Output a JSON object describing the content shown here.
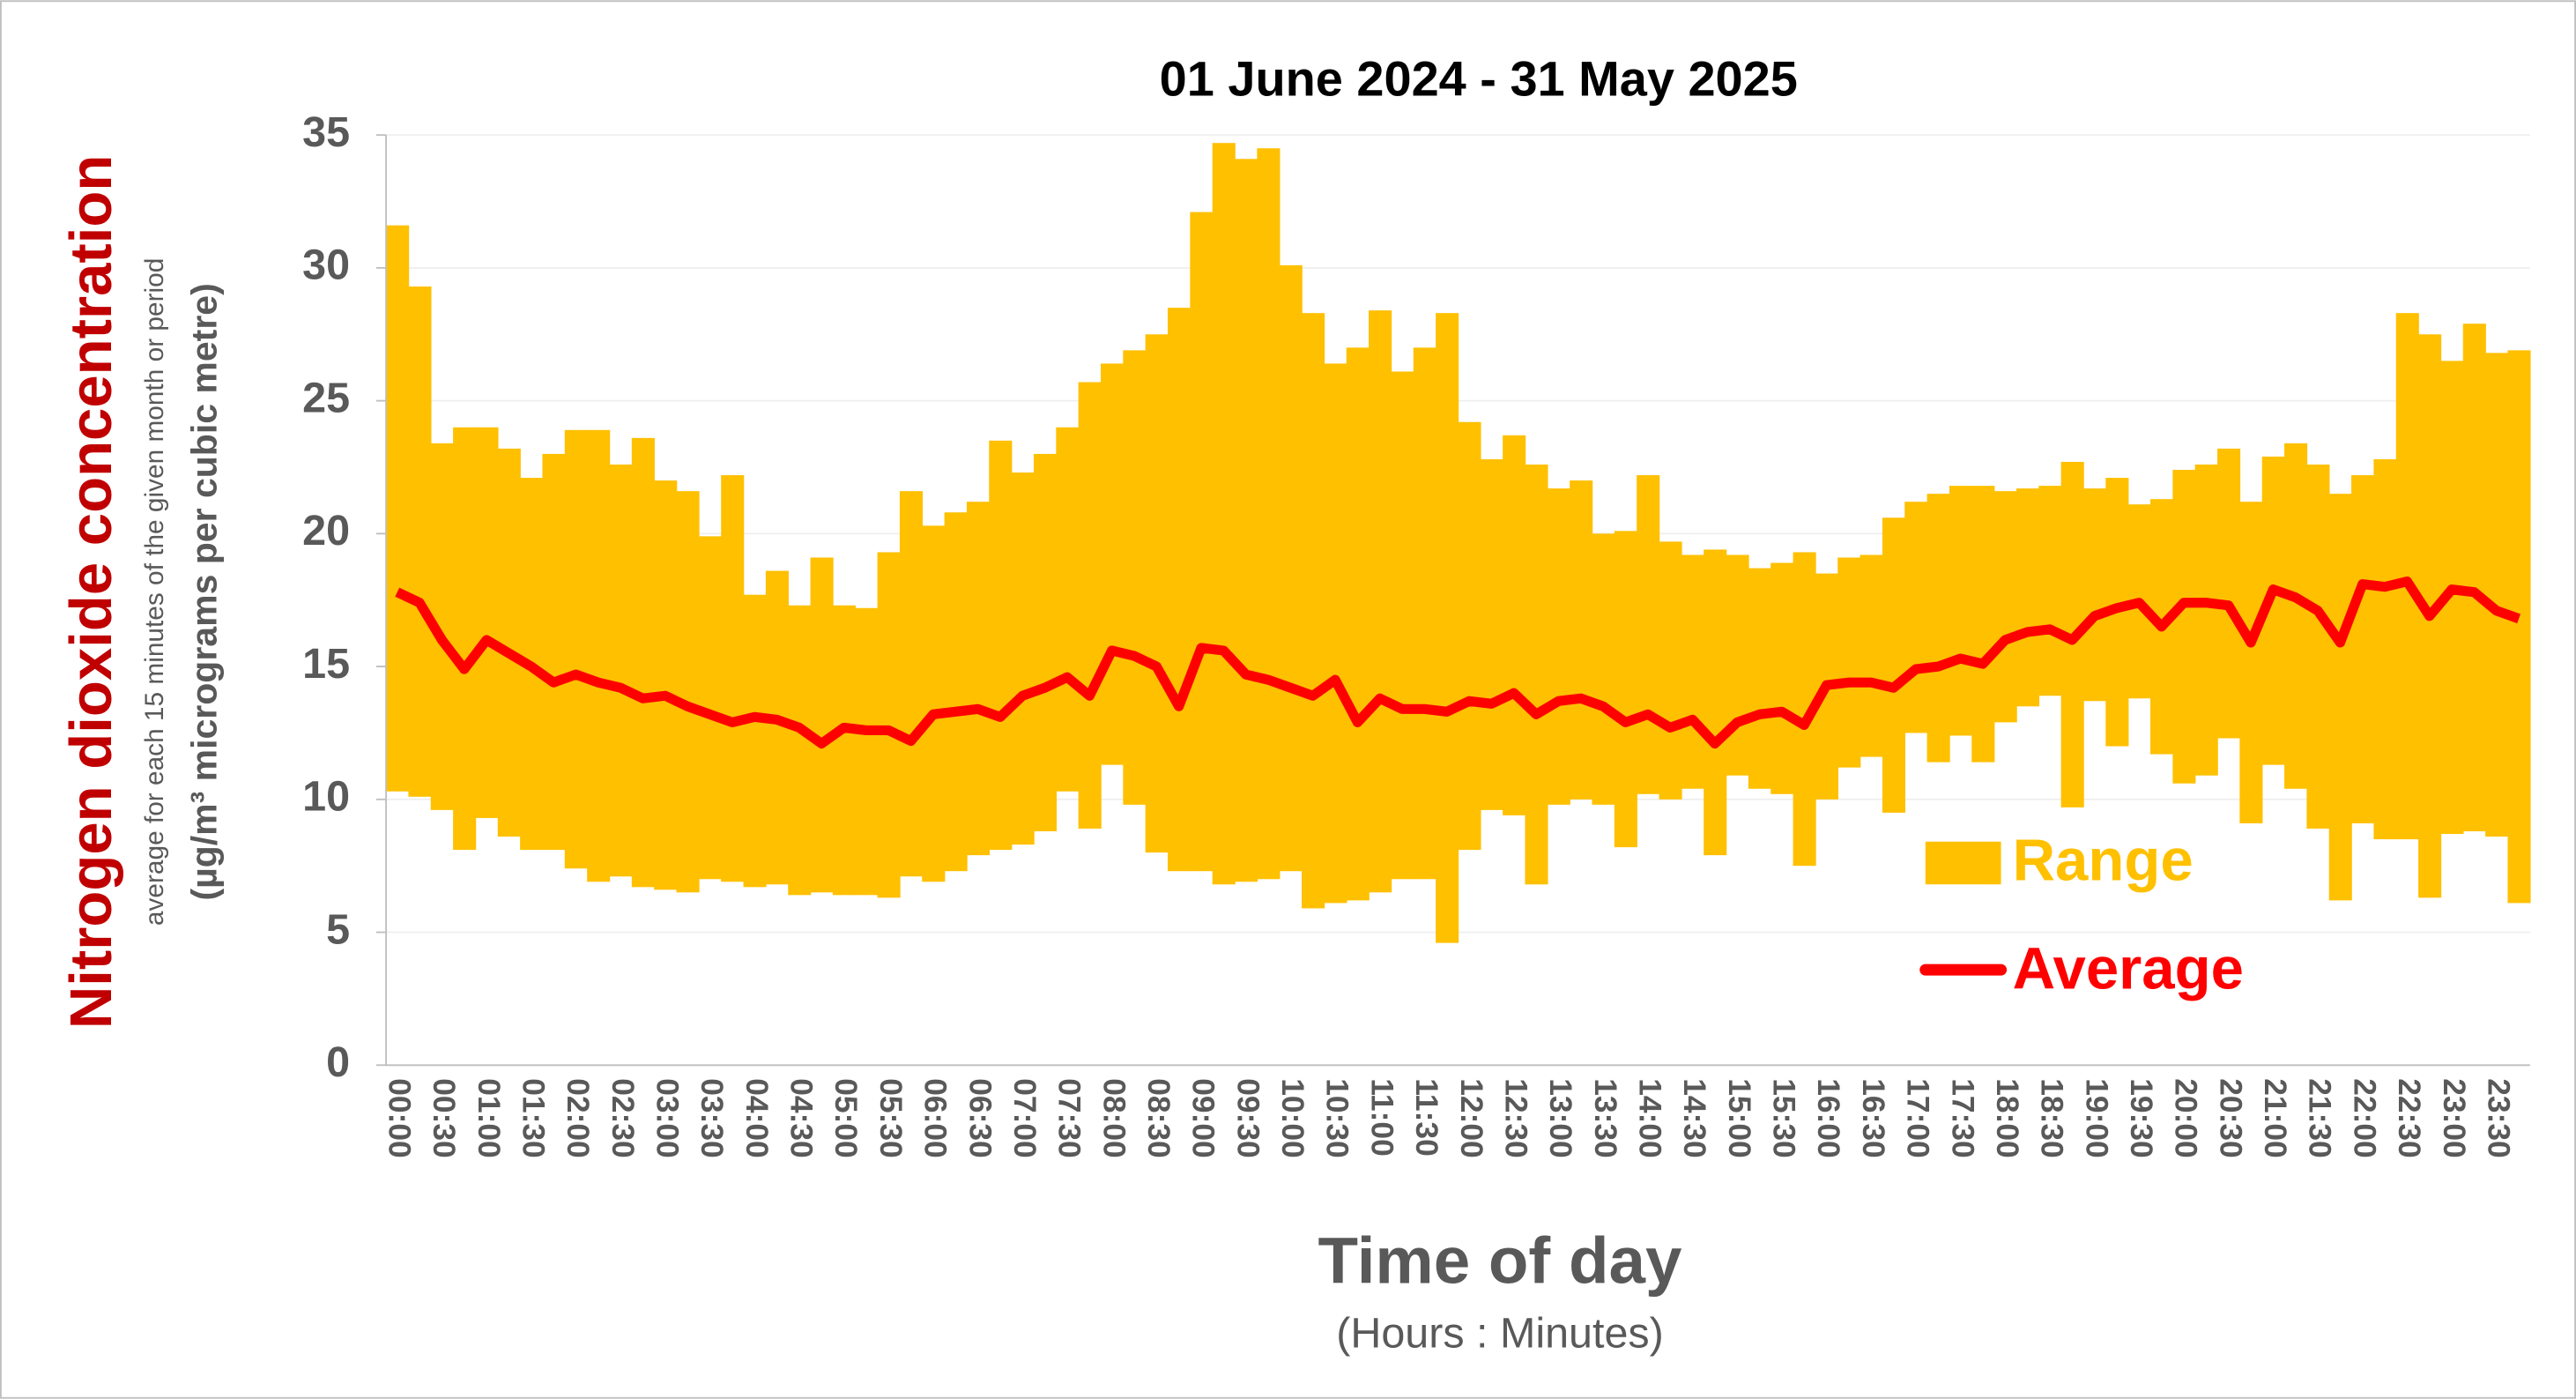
{
  "chart_data": {
    "type": "range-bar-line",
    "title": "01 June 2024 - 31 May 2025",
    "y_title": "Nitrogen dioxide concentration",
    "y_subtitle": "average for each 15 minutes of the given month or period",
    "y_units": "(µg/m³ micrograms per cubic metre)",
    "x_title": "Time of day",
    "x_subtitle": "(Hours : Minutes)",
    "categories": [
      "00:00",
      null,
      "00:30",
      null,
      "01:00",
      null,
      "01:30",
      null,
      "02:00",
      null,
      "02:30",
      null,
      "03:00",
      null,
      "03:30",
      null,
      "04:00",
      null,
      "04:30",
      null,
      "05:00",
      null,
      "05:30",
      null,
      "06:00",
      null,
      "06:30",
      null,
      "07:00",
      null,
      "07:30",
      null,
      "08:00",
      null,
      "08:30",
      null,
      "09:00",
      null,
      "09:30",
      null,
      "10:00",
      null,
      "10:30",
      null,
      "11:00",
      null,
      "11:30",
      null,
      "12:00",
      null,
      "12:30",
      null,
      "13:00",
      null,
      "13:30",
      null,
      "14:00",
      null,
      "14:30",
      null,
      "15:00",
      null,
      "15:30",
      null,
      "16:00",
      null,
      "16:30",
      null,
      "17:00",
      null,
      "17:30",
      null,
      "18:00",
      null,
      "18:30",
      null,
      "19:00",
      null,
      "19:30",
      null,
      "20:00",
      null,
      "20:30",
      null,
      "21:00",
      null,
      "21:30",
      null,
      "22:00",
      null,
      "22:30",
      null,
      "23:00",
      null,
      "23:30",
      null
    ],
    "series": [
      {
        "name": "Range",
        "color": "#ffc000",
        "low": [
          10.3,
          10.1,
          9.6,
          8.1,
          9.3,
          8.6,
          8.1,
          8.1,
          7.4,
          6.9,
          7.1,
          6.7,
          6.6,
          6.5,
          7.0,
          6.9,
          6.7,
          6.8,
          6.4,
          6.5,
          6.4,
          6.4,
          6.3,
          7.1,
          6.9,
          7.3,
          7.9,
          8.1,
          8.3,
          8.8,
          10.3,
          8.9,
          11.3,
          9.8,
          8.0,
          7.3,
          7.3,
          6.8,
          6.9,
          7.0,
          7.3,
          5.9,
          6.1,
          6.2,
          6.5,
          7.0,
          7.0,
          4.6,
          8.1,
          9.6,
          9.4,
          6.8,
          9.8,
          10.0,
          9.8,
          8.2,
          10.2,
          10.0,
          10.4,
          7.9,
          10.9,
          10.4,
          10.2,
          7.5,
          10.0,
          11.2,
          11.6,
          9.5,
          12.5,
          11.4,
          12.4,
          11.4,
          12.9,
          13.5,
          13.9,
          9.7,
          13.7,
          12.0,
          13.8,
          11.7,
          10.6,
          10.9,
          12.3,
          9.1,
          11.3,
          10.4,
          8.9,
          6.2,
          9.1,
          8.5,
          8.5,
          6.3,
          8.7,
          8.8,
          8.6,
          6.1
        ],
        "high": [
          31.6,
          29.3,
          23.4,
          24.0,
          24.0,
          23.2,
          22.1,
          23.0,
          23.9,
          23.9,
          22.6,
          23.6,
          22.0,
          21.6,
          19.9,
          22.2,
          17.7,
          18.6,
          17.3,
          19.1,
          17.3,
          17.2,
          19.3,
          21.6,
          20.3,
          20.8,
          21.2,
          23.5,
          22.3,
          23.0,
          24.0,
          25.7,
          26.4,
          26.9,
          27.5,
          28.5,
          32.1,
          34.7,
          34.1,
          34.5,
          30.1,
          28.3,
          26.4,
          27.0,
          28.4,
          26.1,
          27.0,
          28.3,
          24.2,
          22.8,
          23.7,
          22.6,
          21.7,
          22.0,
          20.0,
          20.1,
          22.2,
          19.7,
          19.2,
          19.4,
          19.2,
          18.7,
          18.9,
          19.3,
          18.5,
          19.1,
          19.2,
          20.6,
          21.2,
          21.5,
          21.8,
          21.8,
          21.6,
          21.7,
          21.8,
          22.7,
          21.7,
          22.1,
          21.1,
          21.3,
          22.4,
          22.6,
          23.2,
          21.2,
          22.9,
          23.4,
          22.6,
          21.5,
          22.2,
          22.8,
          28.3,
          27.5,
          26.5,
          27.9,
          26.8,
          26.9
        ]
      },
      {
        "name": "Average",
        "color": "#ff0000",
        "values": [
          17.8,
          17.4,
          16.0,
          14.9,
          16.0,
          15.5,
          15.0,
          14.4,
          14.7,
          14.4,
          14.2,
          13.8,
          13.9,
          13.5,
          13.2,
          12.9,
          13.1,
          13.0,
          12.7,
          12.1,
          12.7,
          12.6,
          12.6,
          12.2,
          13.2,
          13.3,
          13.4,
          13.1,
          13.9,
          14.2,
          14.6,
          13.9,
          15.6,
          15.4,
          15.0,
          13.5,
          15.7,
          15.6,
          14.7,
          14.5,
          14.2,
          13.9,
          14.5,
          12.9,
          13.8,
          13.4,
          13.4,
          13.3,
          13.7,
          13.6,
          14.0,
          13.2,
          13.7,
          13.8,
          13.5,
          12.9,
          13.2,
          12.7,
          13.0,
          12.1,
          12.9,
          13.2,
          13.3,
          12.8,
          14.3,
          14.4,
          14.4,
          14.2,
          14.9,
          15.0,
          15.3,
          15.1,
          16.0,
          16.3,
          16.4,
          16.0,
          16.9,
          17.2,
          17.4,
          16.5,
          17.4,
          17.4,
          17.3,
          15.9,
          17.9,
          17.6,
          17.1,
          15.9,
          18.1,
          18.0,
          18.2,
          16.9,
          17.9,
          17.8,
          17.1,
          16.8
        ]
      }
    ],
    "ylim": [
      0,
      35
    ],
    "yticks": [
      0,
      5,
      10,
      15,
      20,
      25,
      30,
      35
    ],
    "grid": true
  }
}
